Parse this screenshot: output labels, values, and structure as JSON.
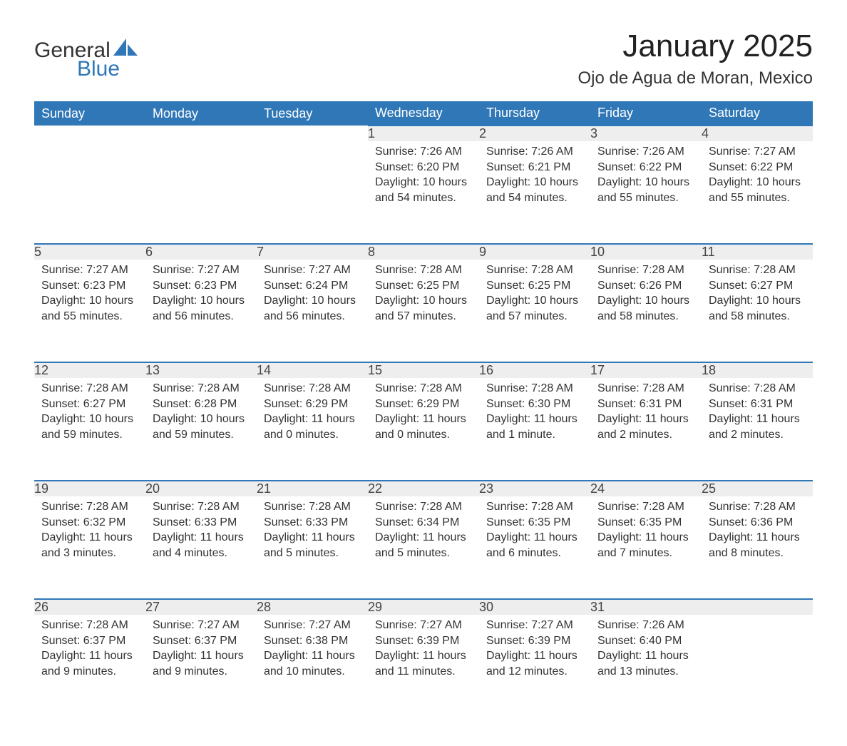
{
  "logo": {
    "general": "General",
    "blue": "Blue",
    "accent_color": "#2f77b7"
  },
  "title": {
    "month": "January 2025",
    "location": "Ojo de Agua de Moran, Mexico"
  },
  "calendar": {
    "header_bg": "#2f77b7",
    "header_fg": "#ffffff",
    "daynum_bg": "#eeeeee",
    "rule_color": "#2f77b7",
    "text_color": "#333333",
    "day_names": [
      "Sunday",
      "Monday",
      "Tuesday",
      "Wednesday",
      "Thursday",
      "Friday",
      "Saturday"
    ],
    "weeks": [
      [
        null,
        null,
        null,
        {
          "n": "1",
          "sunrise": "Sunrise: 7:26 AM",
          "sunset": "Sunset: 6:20 PM",
          "dl1": "Daylight: 10 hours",
          "dl2": "and 54 minutes."
        },
        {
          "n": "2",
          "sunrise": "Sunrise: 7:26 AM",
          "sunset": "Sunset: 6:21 PM",
          "dl1": "Daylight: 10 hours",
          "dl2": "and 54 minutes."
        },
        {
          "n": "3",
          "sunrise": "Sunrise: 7:26 AM",
          "sunset": "Sunset: 6:22 PM",
          "dl1": "Daylight: 10 hours",
          "dl2": "and 55 minutes."
        },
        {
          "n": "4",
          "sunrise": "Sunrise: 7:27 AM",
          "sunset": "Sunset: 6:22 PM",
          "dl1": "Daylight: 10 hours",
          "dl2": "and 55 minutes."
        }
      ],
      [
        {
          "n": "5",
          "sunrise": "Sunrise: 7:27 AM",
          "sunset": "Sunset: 6:23 PM",
          "dl1": "Daylight: 10 hours",
          "dl2": "and 55 minutes."
        },
        {
          "n": "6",
          "sunrise": "Sunrise: 7:27 AM",
          "sunset": "Sunset: 6:23 PM",
          "dl1": "Daylight: 10 hours",
          "dl2": "and 56 minutes."
        },
        {
          "n": "7",
          "sunrise": "Sunrise: 7:27 AM",
          "sunset": "Sunset: 6:24 PM",
          "dl1": "Daylight: 10 hours",
          "dl2": "and 56 minutes."
        },
        {
          "n": "8",
          "sunrise": "Sunrise: 7:28 AM",
          "sunset": "Sunset: 6:25 PM",
          "dl1": "Daylight: 10 hours",
          "dl2": "and 57 minutes."
        },
        {
          "n": "9",
          "sunrise": "Sunrise: 7:28 AM",
          "sunset": "Sunset: 6:25 PM",
          "dl1": "Daylight: 10 hours",
          "dl2": "and 57 minutes."
        },
        {
          "n": "10",
          "sunrise": "Sunrise: 7:28 AM",
          "sunset": "Sunset: 6:26 PM",
          "dl1": "Daylight: 10 hours",
          "dl2": "and 58 minutes."
        },
        {
          "n": "11",
          "sunrise": "Sunrise: 7:28 AM",
          "sunset": "Sunset: 6:27 PM",
          "dl1": "Daylight: 10 hours",
          "dl2": "and 58 minutes."
        }
      ],
      [
        {
          "n": "12",
          "sunrise": "Sunrise: 7:28 AM",
          "sunset": "Sunset: 6:27 PM",
          "dl1": "Daylight: 10 hours",
          "dl2": "and 59 minutes."
        },
        {
          "n": "13",
          "sunrise": "Sunrise: 7:28 AM",
          "sunset": "Sunset: 6:28 PM",
          "dl1": "Daylight: 10 hours",
          "dl2": "and 59 minutes."
        },
        {
          "n": "14",
          "sunrise": "Sunrise: 7:28 AM",
          "sunset": "Sunset: 6:29 PM",
          "dl1": "Daylight: 11 hours",
          "dl2": "and 0 minutes."
        },
        {
          "n": "15",
          "sunrise": "Sunrise: 7:28 AM",
          "sunset": "Sunset: 6:29 PM",
          "dl1": "Daylight: 11 hours",
          "dl2": "and 0 minutes."
        },
        {
          "n": "16",
          "sunrise": "Sunrise: 7:28 AM",
          "sunset": "Sunset: 6:30 PM",
          "dl1": "Daylight: 11 hours",
          "dl2": "and 1 minute."
        },
        {
          "n": "17",
          "sunrise": "Sunrise: 7:28 AM",
          "sunset": "Sunset: 6:31 PM",
          "dl1": "Daylight: 11 hours",
          "dl2": "and 2 minutes."
        },
        {
          "n": "18",
          "sunrise": "Sunrise: 7:28 AM",
          "sunset": "Sunset: 6:31 PM",
          "dl1": "Daylight: 11 hours",
          "dl2": "and 2 minutes."
        }
      ],
      [
        {
          "n": "19",
          "sunrise": "Sunrise: 7:28 AM",
          "sunset": "Sunset: 6:32 PM",
          "dl1": "Daylight: 11 hours",
          "dl2": "and 3 minutes."
        },
        {
          "n": "20",
          "sunrise": "Sunrise: 7:28 AM",
          "sunset": "Sunset: 6:33 PM",
          "dl1": "Daylight: 11 hours",
          "dl2": "and 4 minutes."
        },
        {
          "n": "21",
          "sunrise": "Sunrise: 7:28 AM",
          "sunset": "Sunset: 6:33 PM",
          "dl1": "Daylight: 11 hours",
          "dl2": "and 5 minutes."
        },
        {
          "n": "22",
          "sunrise": "Sunrise: 7:28 AM",
          "sunset": "Sunset: 6:34 PM",
          "dl1": "Daylight: 11 hours",
          "dl2": "and 5 minutes."
        },
        {
          "n": "23",
          "sunrise": "Sunrise: 7:28 AM",
          "sunset": "Sunset: 6:35 PM",
          "dl1": "Daylight: 11 hours",
          "dl2": "and 6 minutes."
        },
        {
          "n": "24",
          "sunrise": "Sunrise: 7:28 AM",
          "sunset": "Sunset: 6:35 PM",
          "dl1": "Daylight: 11 hours",
          "dl2": "and 7 minutes."
        },
        {
          "n": "25",
          "sunrise": "Sunrise: 7:28 AM",
          "sunset": "Sunset: 6:36 PM",
          "dl1": "Daylight: 11 hours",
          "dl2": "and 8 minutes."
        }
      ],
      [
        {
          "n": "26",
          "sunrise": "Sunrise: 7:28 AM",
          "sunset": "Sunset: 6:37 PM",
          "dl1": "Daylight: 11 hours",
          "dl2": "and 9 minutes."
        },
        {
          "n": "27",
          "sunrise": "Sunrise: 7:27 AM",
          "sunset": "Sunset: 6:37 PM",
          "dl1": "Daylight: 11 hours",
          "dl2": "and 9 minutes."
        },
        {
          "n": "28",
          "sunrise": "Sunrise: 7:27 AM",
          "sunset": "Sunset: 6:38 PM",
          "dl1": "Daylight: 11 hours",
          "dl2": "and 10 minutes."
        },
        {
          "n": "29",
          "sunrise": "Sunrise: 7:27 AM",
          "sunset": "Sunset: 6:39 PM",
          "dl1": "Daylight: 11 hours",
          "dl2": "and 11 minutes."
        },
        {
          "n": "30",
          "sunrise": "Sunrise: 7:27 AM",
          "sunset": "Sunset: 6:39 PM",
          "dl1": "Daylight: 11 hours",
          "dl2": "and 12 minutes."
        },
        {
          "n": "31",
          "sunrise": "Sunrise: 7:26 AM",
          "sunset": "Sunset: 6:40 PM",
          "dl1": "Daylight: 11 hours",
          "dl2": "and 13 minutes."
        },
        null
      ]
    ]
  }
}
